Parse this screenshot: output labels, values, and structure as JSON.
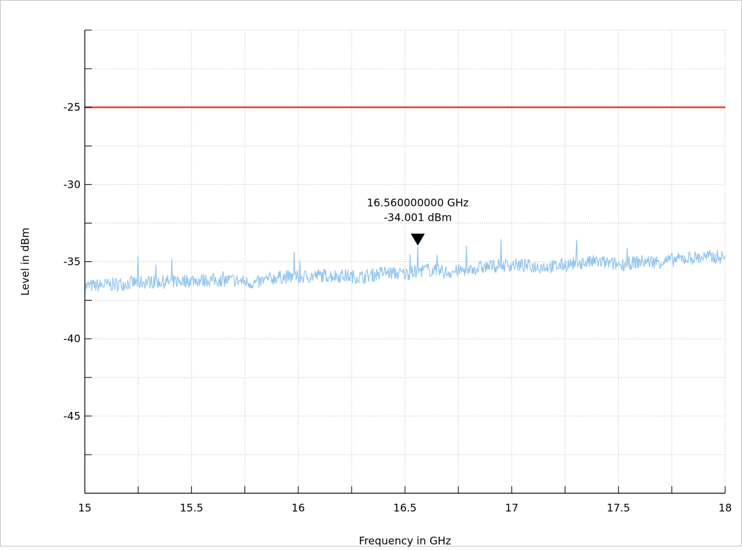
{
  "chart_data": {
    "type": "line",
    "title": "",
    "xlabel": "Frequency in GHz",
    "ylabel": "Level in dBm",
    "xlim": [
      15,
      18
    ],
    "ylim": [
      -50,
      -20
    ],
    "x_ticks": [
      15,
      15.5,
      16,
      16.5,
      17,
      17.5,
      18
    ],
    "x_tick_labels": [
      "15",
      "15.5",
      "16",
      "16.5",
      "17",
      "17.5",
      "18"
    ],
    "y_ticks": [
      -45,
      -40,
      -35,
      -30,
      -25
    ],
    "y_tick_labels": [
      "-45",
      "-40",
      "-35",
      "-30",
      "-25"
    ],
    "grid": true,
    "limit_line": {
      "value": -25,
      "color": "#e8403a"
    },
    "series": [
      {
        "color": "#92c5f0",
        "x": [
          15.0,
          15.1,
          15.2,
          15.3,
          15.4,
          15.5,
          15.6,
          15.7,
          15.8,
          15.9,
          16.0,
          16.1,
          16.2,
          16.3,
          16.4,
          16.5,
          16.6,
          16.7,
          16.8,
          16.9,
          17.0,
          17.1,
          17.2,
          17.3,
          17.4,
          17.5,
          17.6,
          17.7,
          17.8,
          17.9,
          18.0
        ],
        "values": [
          -36.6,
          -36.5,
          -36.4,
          -36.3,
          -36.3,
          -36.2,
          -36.2,
          -36.2,
          -36.4,
          -36.0,
          -36.0,
          -35.9,
          -35.9,
          -36.0,
          -35.7,
          -35.8,
          -35.5,
          -35.7,
          -35.5,
          -35.3,
          -35.2,
          -35.3,
          -35.3,
          -35.1,
          -35.0,
          -35.2,
          -35.0,
          -35.0,
          -34.8,
          -34.7,
          -34.7
        ]
      }
    ],
    "marker": {
      "x": 16.56,
      "y": -34.001,
      "label_line1": "16.560000000 GHz",
      "label_line2": "-34.001 dBm"
    }
  }
}
